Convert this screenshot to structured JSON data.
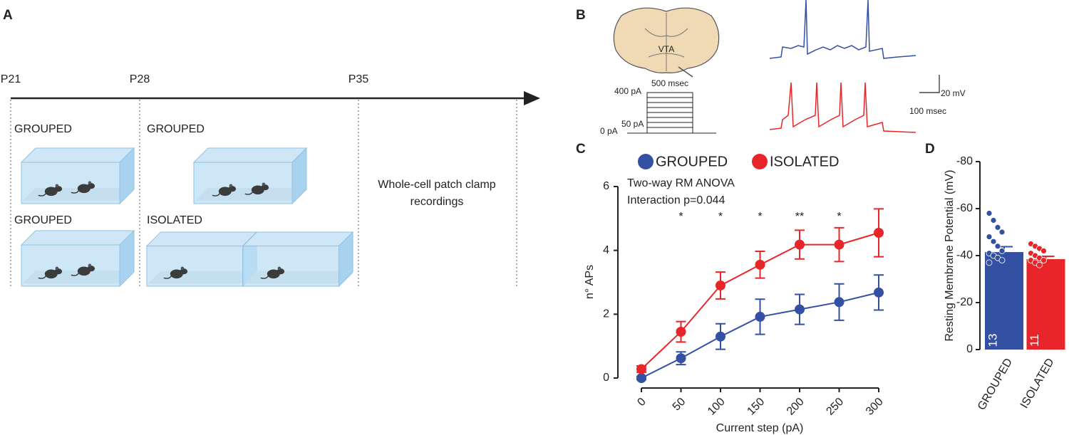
{
  "panel_a": {
    "label": "A",
    "timepoints": [
      "P21",
      "P28",
      "P35"
    ],
    "groups": [
      "GROUPED",
      "GROUPED",
      "GROUPED",
      "ISOLATED"
    ],
    "note": [
      "Whole-cell patch clamp",
      "recordings"
    ]
  },
  "panel_b": {
    "label": "B",
    "region": "VTA",
    "protocol": [
      "400 pA",
      "500 msec",
      "50 pA",
      "0 pA"
    ],
    "scale": [
      "20 mV",
      "100 msec"
    ]
  },
  "chart_data": [
    {
      "type": "line",
      "panel": "C",
      "x": [
        0,
        50,
        100,
        150,
        200,
        250,
        300
      ],
      "series": [
        {
          "name": "GROUPED",
          "color": "#3450a3",
          "values": [
            0,
            0.62,
            1.3,
            1.92,
            2.15,
            2.38,
            2.68
          ],
          "errors": [
            0.05,
            0.2,
            0.4,
            0.55,
            0.47,
            0.57,
            0.55
          ]
        },
        {
          "name": "ISOLATED",
          "color": "#e8262a",
          "values": [
            0.28,
            1.45,
            2.9,
            3.55,
            4.18,
            4.18,
            4.55
          ],
          "errors": [
            0.1,
            0.32,
            0.42,
            0.42,
            0.45,
            0.53,
            0.75
          ]
        }
      ],
      "xlim": [
        0,
        300
      ],
      "xticks": [
        0,
        50,
        100,
        150,
        200,
        250,
        300
      ],
      "ylim": [
        0,
        6
      ],
      "yticks": [
        0,
        2,
        4,
        6
      ],
      "xlabel": "Current step (pA)",
      "ylabel": "n° APs",
      "stats": [
        "Two-way RM ANOVA",
        "Interaction p=0.044"
      ],
      "annotations": [
        {
          "text": "*",
          "x": 50
        },
        {
          "text": "*",
          "x": 100
        },
        {
          "text": "*",
          "x": 150
        },
        {
          "text": "**",
          "x": 200
        },
        {
          "text": "*",
          "x": 250
        }
      ]
    },
    {
      "type": "bar",
      "panel": "D",
      "categories": [
        "GROUPED",
        "ISOLATED"
      ],
      "values": [
        -41.5,
        -38.5
      ],
      "errors": [
        2.3,
        1.2
      ],
      "colors": [
        "#3450a3",
        "#e8262a"
      ],
      "n": [
        13,
        11
      ],
      "points": [
        [
          -58,
          -55,
          -52,
          -50,
          -48,
          -46,
          -44,
          -42,
          -41,
          -40,
          -39,
          -38,
          -37
        ],
        [
          -45,
          -44,
          -43,
          -42,
          -41,
          -40,
          -39,
          -38,
          -38,
          -37,
          -36
        ]
      ],
      "ylim": [
        0,
        -80
      ],
      "yticks": [
        -80,
        -60,
        -40,
        -20,
        0
      ],
      "ylabel": "Resting Membrane Potential (mV)"
    }
  ]
}
